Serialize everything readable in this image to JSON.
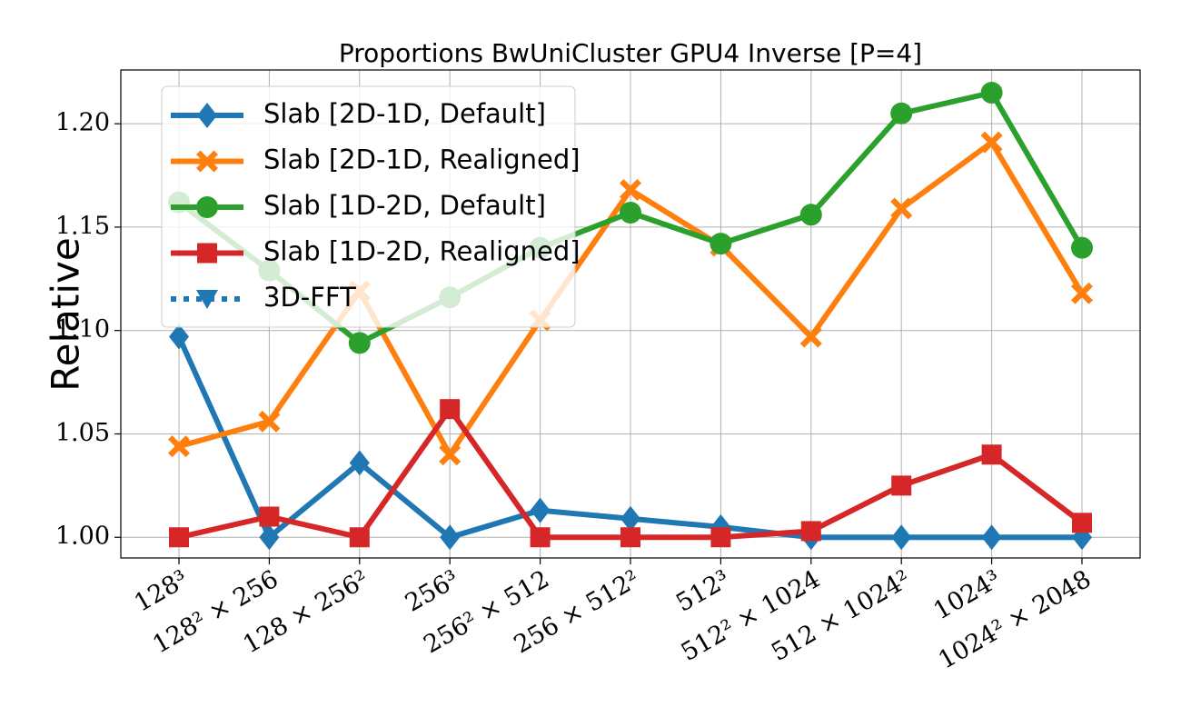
{
  "chart_data": {
    "type": "line",
    "title": "Proportions BwUniCluster GPU4 Inverse [P=4]",
    "ylabel": "Relative",
    "categories": [
      "128³",
      "128² × 256",
      "128 × 256²",
      "256³",
      "256² × 512",
      "256 × 512²",
      "512³",
      "512² × 1024",
      "512 × 1024²",
      "1024³",
      "1024² × 2048"
    ],
    "series": [
      {
        "name": "Slab [2D-1D, Default]",
        "color": "#1f77b4",
        "marker": "diamond",
        "linestyle": "solid",
        "values": [
          1.097,
          1.0,
          1.036,
          1.0,
          1.013,
          1.009,
          1.005,
          1.0,
          1.0,
          1.0,
          1.0
        ]
      },
      {
        "name": "Slab [2D-1D, Realigned]",
        "color": "#ff7f0e",
        "marker": "x",
        "linestyle": "solid",
        "values": [
          1.044,
          1.056,
          1.119,
          1.04,
          1.105,
          1.168,
          1.141,
          1.097,
          1.159,
          1.191,
          1.118
        ]
      },
      {
        "name": "Slab [1D-2D, Default]",
        "color": "#2ca02c",
        "marker": "circle",
        "linestyle": "solid",
        "values": [
          1.162,
          1.129,
          1.094,
          1.116,
          1.14,
          1.157,
          1.142,
          1.156,
          1.205,
          1.215,
          1.14
        ]
      },
      {
        "name": "Slab [1D-2D, Realigned]",
        "color": "#d62728",
        "marker": "square",
        "linestyle": "solid",
        "values": [
          1.0,
          1.01,
          1.0,
          1.062,
          1.0,
          1.0,
          1.0,
          1.003,
          1.025,
          1.04,
          1.007
        ]
      },
      {
        "name": "3D-FFT",
        "color": "#1f77b4",
        "marker": "triangle-down",
        "linestyle": "dotted",
        "values": [
          null,
          null,
          null,
          null,
          null,
          null,
          null,
          null,
          null,
          null,
          null
        ]
      }
    ],
    "ylim": [
      0.99,
      1.226
    ],
    "yticks": [
      {
        "value": 1.0,
        "label": "1.00"
      },
      {
        "value": 1.05,
        "label": "1.05"
      },
      {
        "value": 1.1,
        "label": "1.10"
      },
      {
        "value": 1.15,
        "label": "1.15"
      },
      {
        "value": 1.2,
        "label": "1.20"
      }
    ],
    "grid": true,
    "legend": "upper left"
  }
}
